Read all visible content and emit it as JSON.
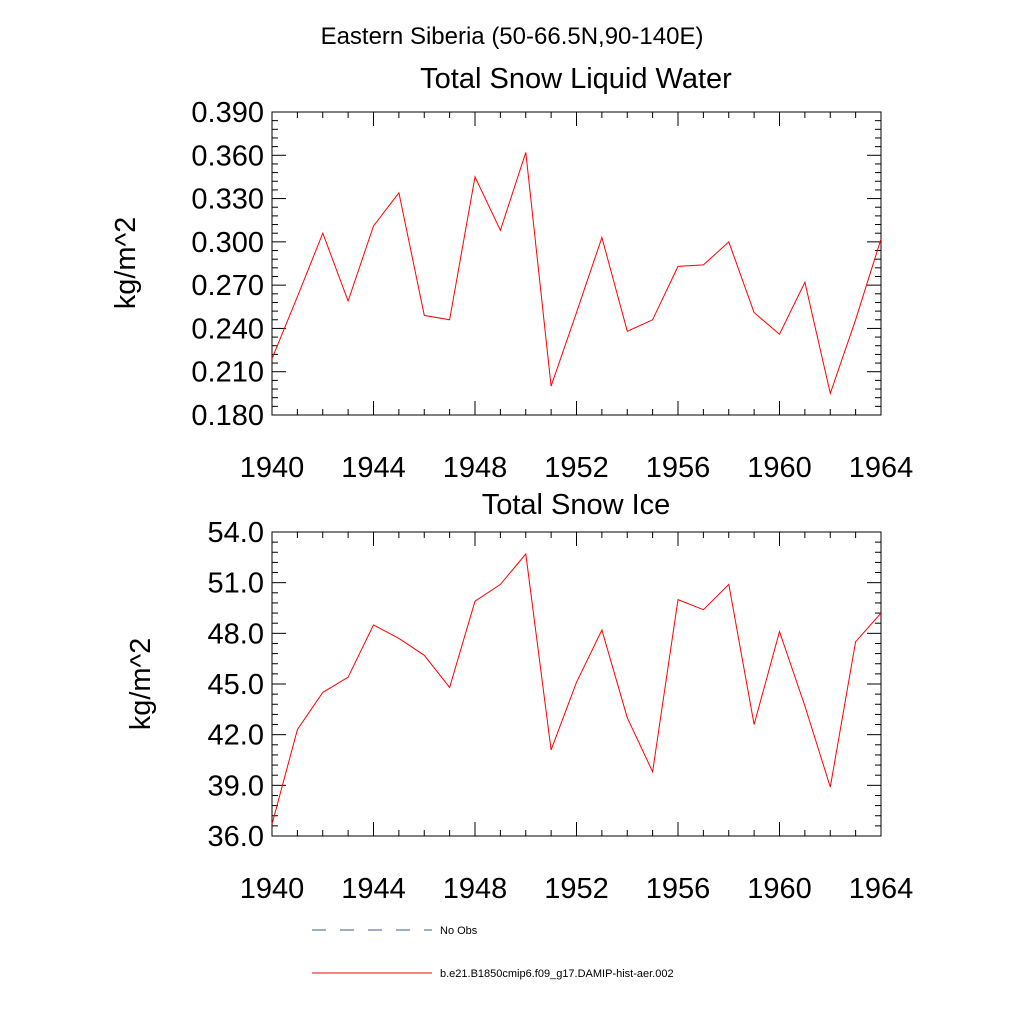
{
  "figure": {
    "main_title": "Eastern Siberia (50-66.5N,90-140E)"
  },
  "colors": {
    "model_line": "#ff0000",
    "obs_line": "#4a5a8a",
    "axis": "#000000"
  },
  "chart_data": [
    {
      "type": "line",
      "title": "Total Snow Liquid Water",
      "xlabel": "",
      "ylabel": "kg/m^2",
      "xlim": [
        1940,
        1964
      ],
      "ylim": [
        0.18,
        0.39
      ],
      "x_ticks": [
        "1940",
        "1944",
        "1948",
        "1952",
        "1956",
        "1960",
        "1964"
      ],
      "y_ticks": [
        "0.180",
        "0.210",
        "0.240",
        "0.270",
        "0.300",
        "0.330",
        "0.360",
        "0.390"
      ],
      "grid": false,
      "series": [
        {
          "name": "b.e21.B1850cmip6.f09_g17.DAMIP-hist-aer.002",
          "x": [
            1940,
            1941,
            1942,
            1943,
            1944,
            1945,
            1946,
            1947,
            1948,
            1949,
            1950,
            1951,
            1952,
            1953,
            1954,
            1955,
            1956,
            1957,
            1958,
            1959,
            1960,
            1961,
            1962,
            1963,
            1964
          ],
          "values": [
            0.219,
            0.262,
            0.306,
            0.259,
            0.311,
            0.334,
            0.249,
            0.246,
            0.345,
            0.308,
            0.362,
            0.2,
            0.251,
            0.303,
            0.238,
            0.246,
            0.283,
            0.284,
            0.3,
            0.251,
            0.236,
            0.272,
            0.195,
            0.246,
            0.302
          ]
        }
      ]
    },
    {
      "type": "line",
      "title": "Total Snow Ice",
      "xlabel": "",
      "ylabel": "kg/m^2",
      "xlim": [
        1940,
        1964
      ],
      "ylim": [
        36.0,
        54.0
      ],
      "x_ticks": [
        "1940",
        "1944",
        "1948",
        "1952",
        "1956",
        "1960",
        "1964"
      ],
      "y_ticks": [
        "36.0",
        "39.0",
        "42.0",
        "45.0",
        "48.0",
        "51.0",
        "54.0"
      ],
      "grid": false,
      "series": [
        {
          "name": "b.e21.B1850cmip6.f09_g17.DAMIP-hist-aer.002",
          "x": [
            1940,
            1941,
            1942,
            1943,
            1944,
            1945,
            1946,
            1947,
            1948,
            1949,
            1950,
            1951,
            1952,
            1953,
            1954,
            1955,
            1956,
            1957,
            1958,
            1959,
            1960,
            1961,
            1962,
            1963,
            1964
          ],
          "values": [
            36.7,
            42.3,
            44.5,
            45.4,
            48.5,
            47.7,
            46.7,
            44.8,
            49.9,
            50.9,
            52.7,
            41.1,
            45.1,
            48.2,
            43.0,
            39.8,
            50.0,
            49.4,
            50.9,
            42.6,
            48.1,
            43.7,
            38.9,
            47.5,
            49.2
          ]
        }
      ]
    }
  ],
  "legend": {
    "placement": "bottom",
    "entries": [
      {
        "label": "No Obs",
        "style": "dashed"
      },
      {
        "label": "b.e21.B1850cmip6.f09_g17.DAMIP-hist-aer.002",
        "style": "solid"
      }
    ]
  }
}
